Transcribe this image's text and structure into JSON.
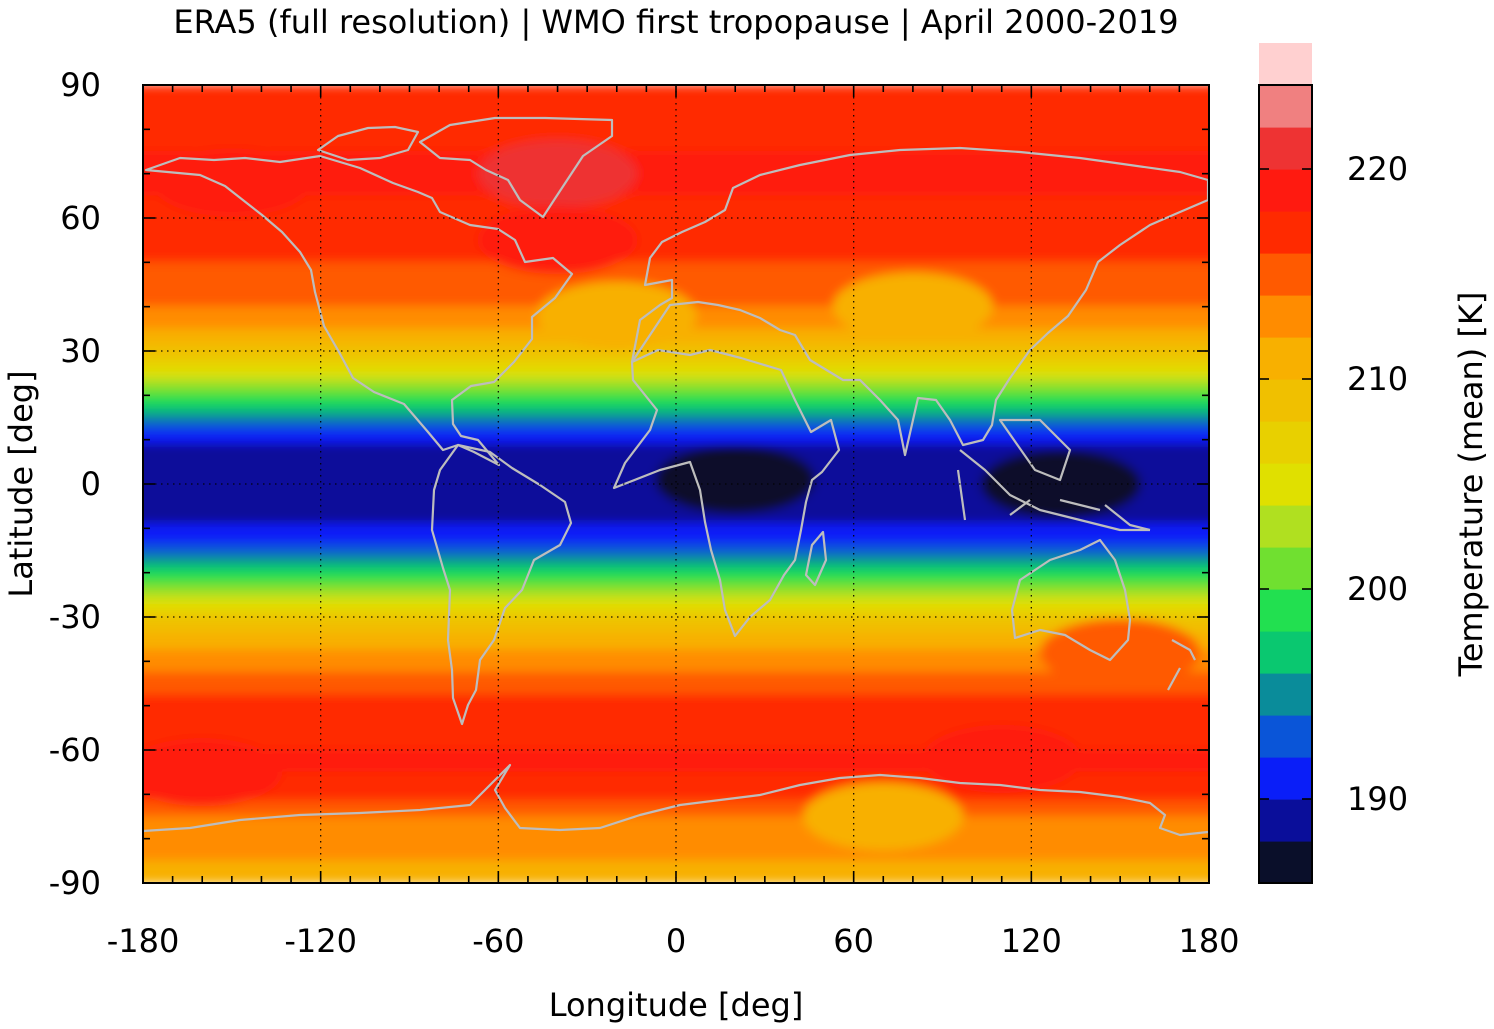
{
  "chart_data": {
    "type": "heatmap",
    "title": "ERA5 (full resolution) | WMO first tropopause | April 2000-2019",
    "xlabel": "Longitude [deg]",
    "ylabel": "Latitude [deg]",
    "colorbar_label": "Temperature (mean) [K]",
    "xlim": [
      -180,
      180
    ],
    "ylim": [
      -90,
      90
    ],
    "xticks": [
      "-180",
      "-120",
      "-60",
      "0",
      "60",
      "120",
      "180"
    ],
    "yticks": [
      "90",
      "60",
      "30",
      "0",
      "-30",
      "-60",
      "-90"
    ],
    "x_tick_values": [
      -180,
      -120,
      -60,
      0,
      60,
      120,
      180
    ],
    "y_tick_values": [
      90,
      60,
      30,
      0,
      -30,
      -60,
      -90
    ],
    "grid": true,
    "coastlines": true,
    "colorbar": {
      "range": [
        186,
        224
      ],
      "step": 2,
      "ticks": [
        "190",
        "200",
        "210",
        "220"
      ],
      "tick_values": [
        190,
        200,
        210,
        220
      ],
      "colors": [
        "#0a0f2a",
        "#0a0e9a",
        "#0a1ef8",
        "#0a55d8",
        "#0a8c9a",
        "#0ac870",
        "#22e050",
        "#70e030",
        "#b0e020",
        "#e0e000",
        "#e8d000",
        "#f0c000",
        "#f8b000",
        "#ff8c00",
        "#ff5a00",
        "#ff2a00",
        "#ff1a10",
        "#ee3333",
        "#f08080",
        "#ffd0d0"
      ]
    },
    "zonal_profile": {
      "lat": [
        -90,
        -85,
        -80,
        -75,
        -70,
        -65,
        -60,
        -55,
        -50,
        -45,
        -40,
        -35,
        -30,
        -27,
        -24,
        -21,
        -18,
        -15,
        -12,
        -9,
        -6,
        -3,
        0,
        3,
        6,
        9,
        12,
        15,
        18,
        21,
        24,
        27,
        30,
        35,
        40,
        45,
        50,
        55,
        60,
        65,
        70,
        75,
        80,
        85,
        90
      ],
      "temperature": [
        211,
        212,
        213,
        214,
        217,
        218,
        218,
        217,
        217,
        215,
        213,
        211,
        208,
        205,
        202,
        199,
        196,
        193,
        191,
        190,
        189,
        189,
        189,
        189,
        189,
        190,
        192,
        195,
        198,
        201,
        204,
        207,
        209,
        212,
        214,
        215,
        216,
        217,
        217,
        218,
        218,
        218,
        217,
        217,
        217
      ]
    },
    "anomalies": [
      {
        "lon": 20,
        "lat": 1,
        "dT": -1.2
      },
      {
        "lon": 130,
        "lat": 0,
        "dT": -1.3
      },
      {
        "lon": -65,
        "lat": 0,
        "dT": -0.7
      },
      {
        "lon": -178,
        "lat": 0,
        "dT": -1.0
      },
      {
        "lon": 80,
        "lat": 40,
        "dT": -3.5
      },
      {
        "lon": -20,
        "lat": 38,
        "dT": -1.8
      },
      {
        "lon": -40,
        "lat": 70,
        "dT": 3.0
      },
      {
        "lon": -40,
        "lat": 55,
        "dT": 1.2
      },
      {
        "lon": -150,
        "lat": 68,
        "dT": 1.0
      },
      {
        "lon": 70,
        "lat": -75,
        "dT": -2.8
      },
      {
        "lon": 150,
        "lat": -38,
        "dT": 3.0
      },
      {
        "lon": -160,
        "lat": -65,
        "dT": 1.5
      },
      {
        "lon": 110,
        "lat": -62,
        "dT": 1.2
      }
    ]
  }
}
